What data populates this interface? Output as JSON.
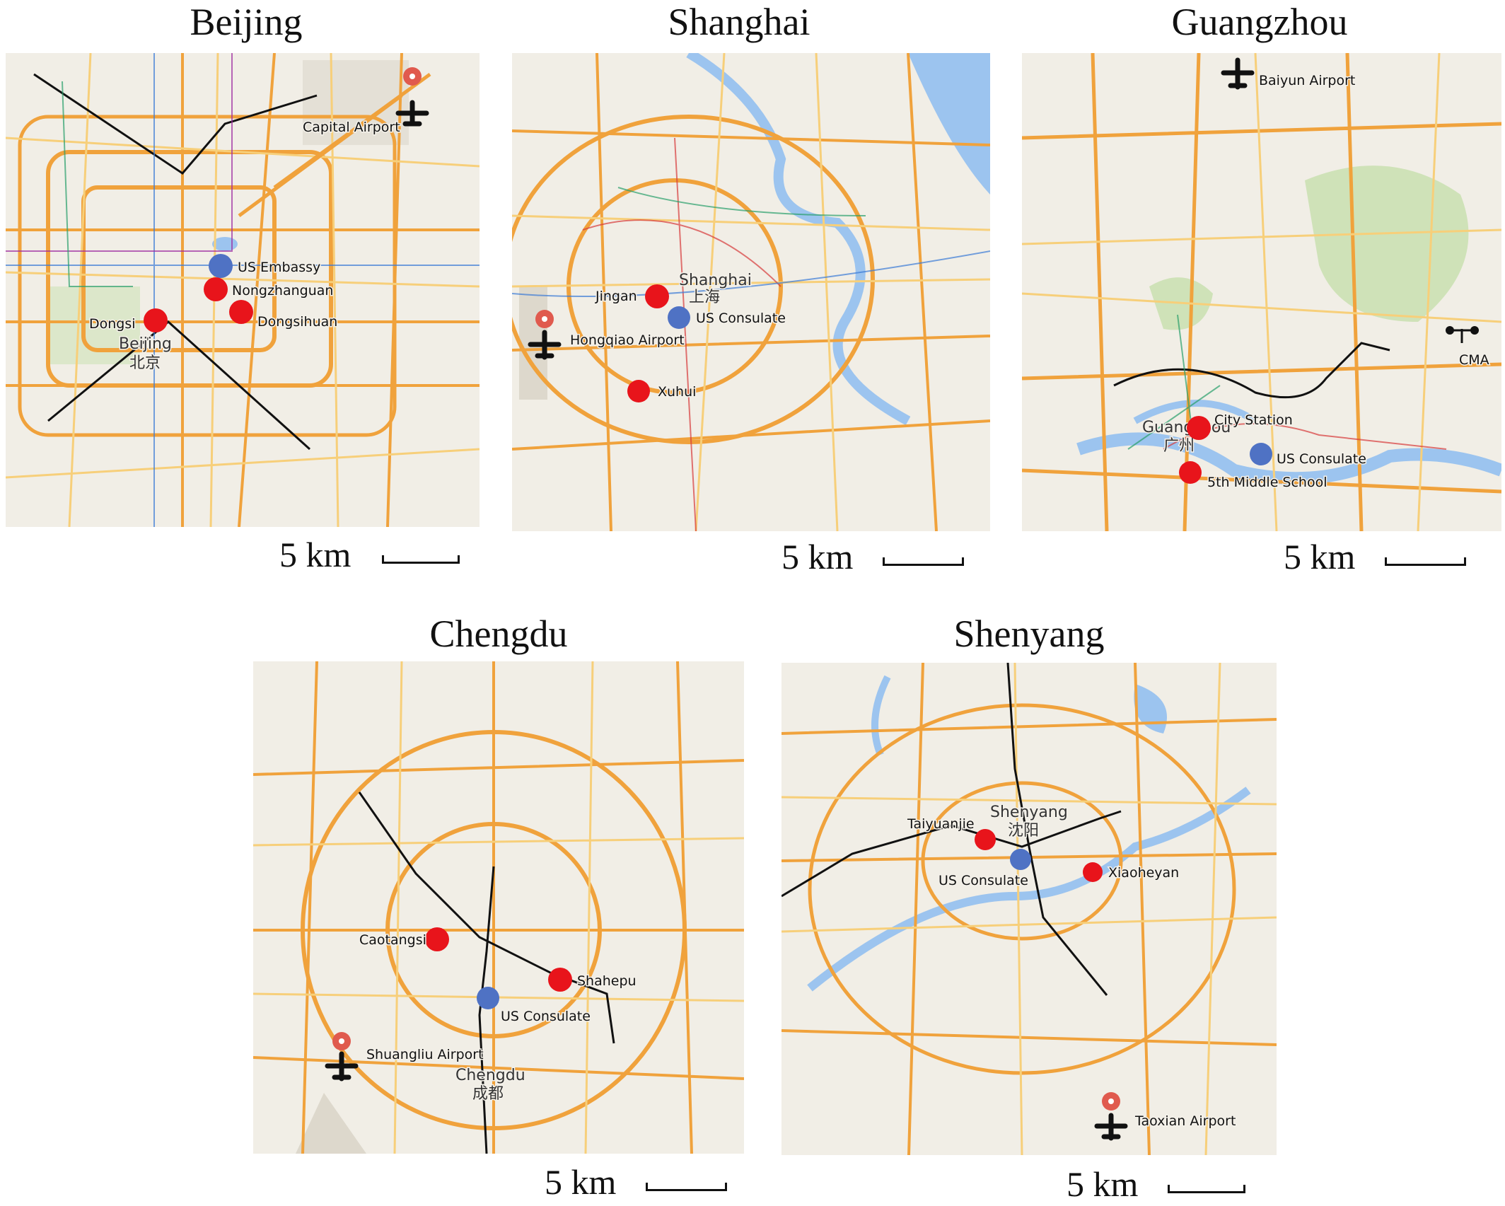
{
  "scale_label": "5 km",
  "colors": {
    "map_background": "#f1eee6",
    "highway": "#f0a23c",
    "minor_road": "#f7cf7a",
    "metro_line": "#111111",
    "water": "#9cc4ef",
    "park": "#cfe2b8",
    "study_site": "#e8141b",
    "consulate_site": "#4f72c4"
  },
  "panels": [
    {
      "id": "beijing",
      "title": "Beijing",
      "city_label": "Beijing",
      "city_label_cn": "北京",
      "airport_label": "Capital Airport",
      "sites": [
        {
          "name": "US Embassy",
          "type": "consulate"
        },
        {
          "name": "Nongzhanguan",
          "type": "study"
        },
        {
          "name": "Dongsi",
          "type": "study"
        },
        {
          "name": "Dongsihuan",
          "type": "study"
        }
      ]
    },
    {
      "id": "shanghai",
      "title": "Shanghai",
      "city_label": "Shanghai",
      "city_label_cn": "上海",
      "airport_label": "Hongqiao Airport",
      "sites": [
        {
          "name": "Jingan",
          "type": "study"
        },
        {
          "name": "US Consulate",
          "type": "consulate"
        },
        {
          "name": "Xuhui",
          "type": "study"
        }
      ]
    },
    {
      "id": "guangzhou",
      "title": "Guangzhou",
      "city_label": "Guangzhou",
      "city_label_cn": "广州",
      "airport_label": "Baiyun Airport",
      "cma_label": "CMA",
      "sites": [
        {
          "name": "City Station",
          "type": "study"
        },
        {
          "name": "US Consulate",
          "type": "consulate"
        },
        {
          "name": "5th Middle School",
          "type": "study"
        }
      ]
    },
    {
      "id": "chengdu",
      "title": "Chengdu",
      "city_label": "Chengdu",
      "city_label_cn": "成都",
      "airport_label": "Shuangliu Airport",
      "sites": [
        {
          "name": "Caotangsi",
          "type": "study"
        },
        {
          "name": "Shahepu",
          "type": "study"
        },
        {
          "name": "US Consulate",
          "type": "consulate"
        }
      ]
    },
    {
      "id": "shenyang",
      "title": "Shenyang",
      "city_label": "Shenyang",
      "city_label_cn": "沈阳",
      "airport_label": "Taoxian Airport",
      "sites": [
        {
          "name": "Taiyuanjie",
          "type": "study"
        },
        {
          "name": "US Consulate",
          "type": "consulate"
        },
        {
          "name": "Xiaoheyan",
          "type": "study"
        }
      ]
    }
  ]
}
